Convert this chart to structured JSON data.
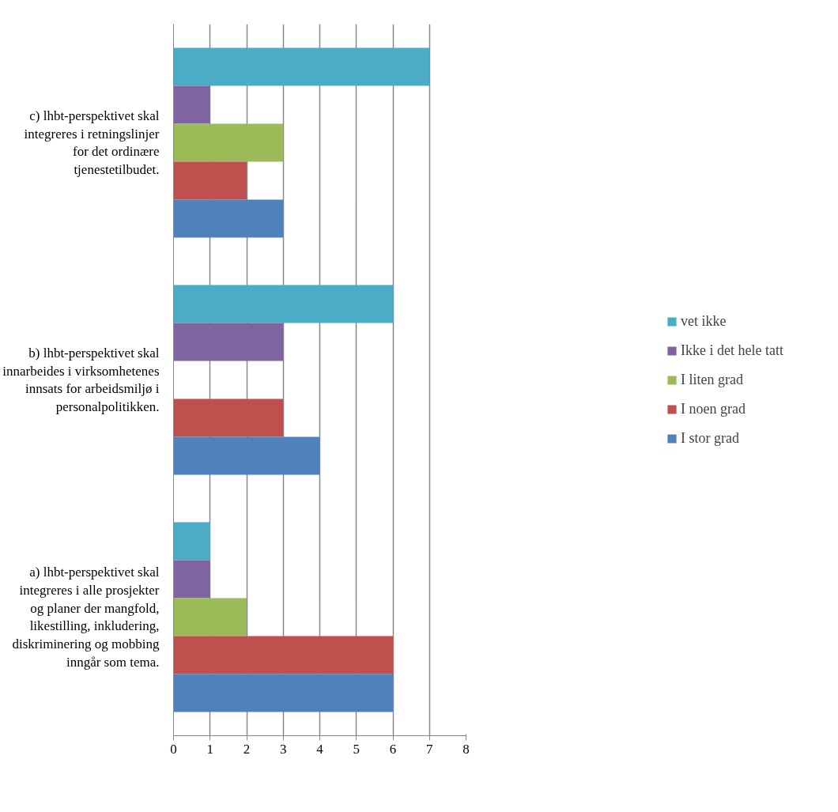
{
  "chart_data": {
    "type": "bar",
    "orientation": "horizontal",
    "categories": [
      "c) lhbt-perspektivet skal integreres i retningslinjer for det ordinære tjenestetilbudet.",
      "b) lhbt-perspektivet skal innarbeides i virksomhetenes innsats for arbeidsmiljø i personalpolitikken.",
      "a) lhbt-perspektivet skal integreres i alle prosjekter og planer der mangfold, likestilling, inkludering, diskriminering og mobbing inngår som tema."
    ],
    "series": [
      {
        "name": "vet ikke",
        "color": "#4bacc6",
        "values": [
          7,
          6,
          1
        ]
      },
      {
        "name": "Ikke i det hele tatt",
        "color": "#8064a2",
        "values": [
          1,
          3,
          1
        ]
      },
      {
        "name": "I liten grad",
        "color": "#9bbb59",
        "values": [
          3,
          0,
          2
        ]
      },
      {
        "name": "I noen grad",
        "color": "#c0504d",
        "values": [
          2,
          3,
          6
        ]
      },
      {
        "name": "I stor grad",
        "color": "#4f81bd",
        "values": [
          3,
          4,
          6
        ]
      }
    ],
    "xlim": [
      0,
      8
    ],
    "xticks": [
      0,
      1,
      2,
      3,
      4,
      5,
      6,
      7,
      8
    ],
    "grid": "x",
    "legend": "right"
  }
}
